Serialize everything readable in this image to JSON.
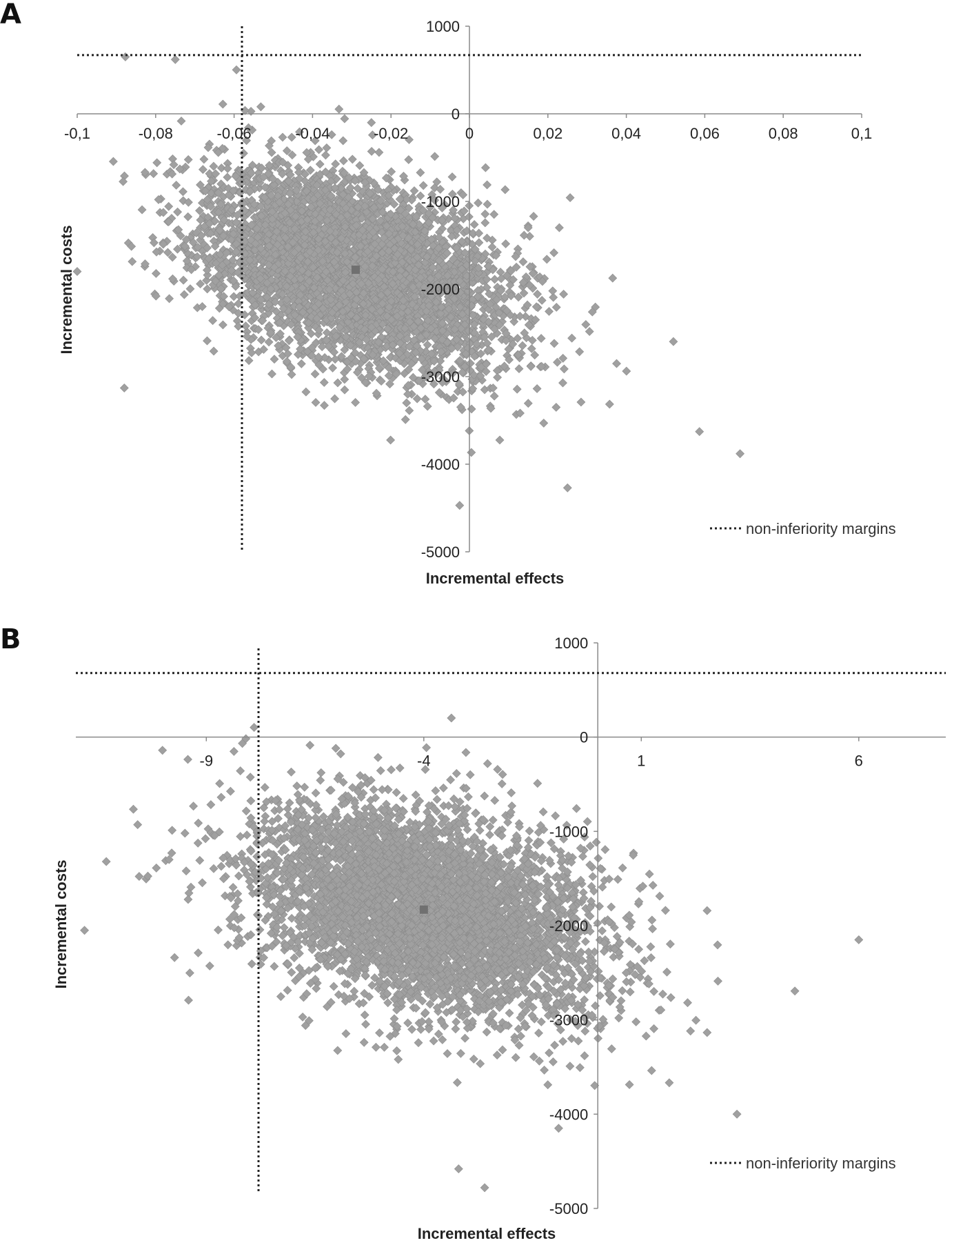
{
  "chart_data": [
    {
      "type": "scatter",
      "panel_label": "A",
      "xlabel": "Incremental effects",
      "ylabel": "Incremental costs",
      "xlim": [
        -0.1,
        0.1
      ],
      "ylim": [
        -5000,
        1000
      ],
      "x_ticks": [
        -0.1,
        -0.08,
        -0.06,
        -0.04,
        -0.02,
        0,
        0.02,
        0.04,
        0.06,
        0.08,
        0.1
      ],
      "x_tick_labels": [
        "-0,1",
        "-0,08",
        "-0,06",
        "-0,04",
        "-0,02",
        "0",
        "0,02",
        "0,04",
        "0,06",
        "0,08",
        "0,1"
      ],
      "y_ticks": [
        1000,
        0,
        -1000,
        -2000,
        -3000,
        -4000,
        -5000
      ],
      "y_tick_labels": [
        "1000",
        "0",
        "-1000",
        "-2000",
        "-3000",
        "-4000",
        "-5000"
      ],
      "point_cloud": {
        "n": 5000,
        "mean": [
          -0.029,
          -1780
        ],
        "sd": [
          0.019,
          560
        ],
        "correlation": -0.4,
        "seed": 11
      },
      "outliers": [
        [
          0.069,
          -3880
        ],
        [
          -0.0025,
          -4470
        ],
        [
          0.025,
          -4270
        ],
        [
          -0.075,
          620
        ],
        [
          0.052,
          -2600
        ],
        [
          -0.088,
          -3130
        ],
        [
          -0.1,
          -1800
        ]
      ],
      "mean_point": [
        -0.029,
        -1780
      ],
      "margins": {
        "x": -0.058,
        "y": 670
      },
      "grid": false,
      "marker": "diamond",
      "color": "#a0a0a0",
      "mean_color": "#707070",
      "legend": {
        "label": "non-inferiority margins",
        "position": "bottom-right",
        "style": "dotted"
      }
    },
    {
      "type": "scatter",
      "panel_label": "B",
      "xlabel": "Incremental effects",
      "ylabel": "Incremental costs",
      "xlim": [
        -12,
        8
      ],
      "ylim": [
        -5000,
        1000
      ],
      "x_ticks": [
        -9,
        -4,
        1,
        6
      ],
      "x_tick_labels": [
        "-9",
        "-4",
        "1",
        "6"
      ],
      "y_ticks": [
        1000,
        0,
        -1000,
        -2000,
        -3000,
        -4000,
        -5000
      ],
      "y_tick_labels": [
        "1000",
        "0",
        "-1000",
        "-2000",
        "-3000",
        "-4000",
        "-5000"
      ],
      "point_cloud": {
        "n": 5000,
        "mean": [
          -4,
          -1830
        ],
        "sd": [
          2.0,
          560
        ],
        "correlation": -0.38,
        "seed": 29
      },
      "outliers": [
        [
          -11.8,
          -2050
        ],
        [
          -11.3,
          -1320
        ],
        [
          -0.9,
          -4150
        ],
        [
          3.2,
          -4000
        ],
        [
          -3.2,
          -4580
        ],
        [
          -2.6,
          -4780
        ],
        [
          6.0,
          -2150
        ]
      ],
      "mean_point": [
        -4,
        -1830
      ],
      "margins": {
        "x": -7.8,
        "y": 680
      },
      "grid": false,
      "marker": "diamond",
      "color": "#a0a0a0",
      "mean_color": "#707070",
      "legend": {
        "label": "non-inferiority margins",
        "position": "bottom-right",
        "style": "dotted"
      }
    }
  ]
}
